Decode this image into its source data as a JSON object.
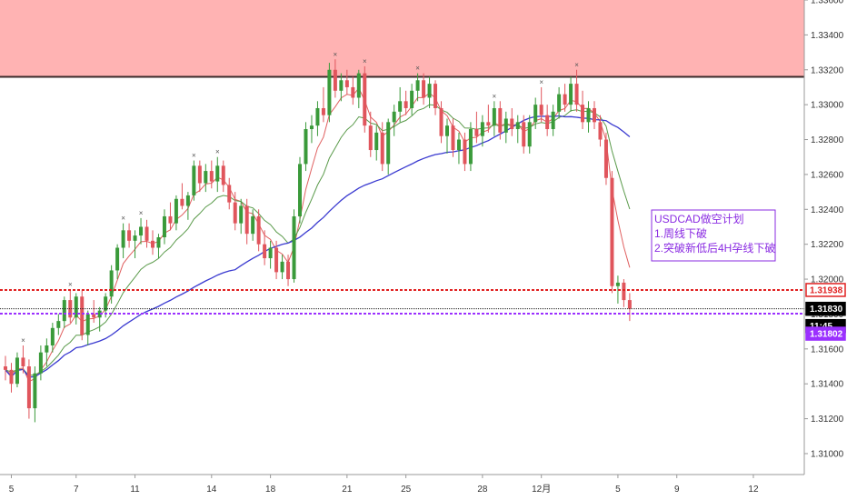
{
  "chart_data": {
    "type": "candlestick",
    "symbol": "USDCAD",
    "timeframe": "4H",
    "colors": {
      "up": "#3a9a3a",
      "down": "#e0555c",
      "ema_fast": "#e06060",
      "ema_slow": "#5a9a4a",
      "ma_long": "#3a3ad0",
      "resistance_zone": "#ffb3b3",
      "resistance_line": "#3a2a2a",
      "level_red": "#e02020",
      "level_current": "#222222",
      "level_purple": "#9b30ff",
      "fractal": "#555555"
    },
    "ylim": [
      1.3088,
      1.336
    ],
    "y_ticks": [
      "1.33600",
      "1.33400",
      "1.33200",
      "1.33000",
      "1.32800",
      "1.32600",
      "1.32400",
      "1.32200",
      "1.32000",
      "1.31800",
      "1.31600",
      "1.31400",
      "1.31200",
      "1.31000"
    ],
    "y_tick_values": [
      1.336,
      1.334,
      1.332,
      1.33,
      1.328,
      1.326,
      1.324,
      1.322,
      1.32,
      1.318,
      1.316,
      1.314,
      1.312,
      1.31
    ],
    "x_ticks": [
      {
        "label": "5",
        "bar": 1
      },
      {
        "label": "7",
        "bar": 12
      },
      {
        "label": "11",
        "bar": 22
      },
      {
        "label": "14",
        "bar": 35
      },
      {
        "label": "18",
        "bar": 45
      },
      {
        "label": "21",
        "bar": 58
      },
      {
        "label": "25",
        "bar": 68
      },
      {
        "label": "28",
        "bar": 81
      },
      {
        "label": "12月",
        "bar": 91
      },
      {
        "label": "5",
        "bar": 104
      },
      {
        "label": "9",
        "bar": 114
      },
      {
        "label": "12",
        "bar": 127
      }
    ],
    "bar_count": 132,
    "resistance_zone": [
      1.3316,
      1.336
    ],
    "levels": {
      "red": {
        "value": 1.31938,
        "label": "1.31938"
      },
      "current": {
        "value": 1.3183,
        "label": "1.31830",
        "countdown": "11:45"
      },
      "purple": {
        "value": 1.31802,
        "label": "1.31802"
      }
    },
    "annotation": {
      "lines": [
        "USDCAD做空计划",
        "1.周线下破",
        "2.突破新低后4H孕线下破"
      ]
    },
    "candles": [
      [
        1.315,
        1.3156,
        1.3142,
        1.3148
      ],
      [
        1.3148,
        1.3152,
        1.3135,
        1.314
      ],
      [
        1.314,
        1.3158,
        1.3138,
        1.3155
      ],
      [
        1.3155,
        1.3162,
        1.3146,
        1.315
      ],
      [
        1.315,
        1.3154,
        1.312,
        1.3126
      ],
      [
        1.3126,
        1.315,
        1.3118,
        1.3146
      ],
      [
        1.3146,
        1.3162,
        1.3142,
        1.3158
      ],
      [
        1.3158,
        1.3166,
        1.315,
        1.3162
      ],
      [
        1.3162,
        1.3175,
        1.3158,
        1.3172
      ],
      [
        1.3172,
        1.318,
        1.3168,
        1.3176
      ],
      [
        1.3176,
        1.319,
        1.3172,
        1.3188
      ],
      [
        1.3188,
        1.3194,
        1.3175,
        1.3178
      ],
      [
        1.3178,
        1.3192,
        1.3174,
        1.319
      ],
      [
        1.319,
        1.3194,
        1.3165,
        1.3168
      ],
      [
        1.3168,
        1.3182,
        1.3162,
        1.318
      ],
      [
        1.318,
        1.3188,
        1.3175,
        1.3178
      ],
      [
        1.3178,
        1.3184,
        1.317,
        1.3182
      ],
      [
        1.3182,
        1.3192,
        1.3178,
        1.319
      ],
      [
        1.319,
        1.3208,
        1.3186,
        1.3205
      ],
      [
        1.3205,
        1.322,
        1.32,
        1.3218
      ],
      [
        1.3218,
        1.3232,
        1.3212,
        1.3228
      ],
      [
        1.3228,
        1.3232,
        1.3218,
        1.3222
      ],
      [
        1.3222,
        1.3228,
        1.3212,
        1.3225
      ],
      [
        1.3225,
        1.3235,
        1.322,
        1.323
      ],
      [
        1.323,
        1.3234,
        1.3218,
        1.3222
      ],
      [
        1.3222,
        1.3228,
        1.3214,
        1.3218
      ],
      [
        1.3218,
        1.3226,
        1.3212,
        1.3224
      ],
      [
        1.3224,
        1.324,
        1.322,
        1.3236
      ],
      [
        1.3236,
        1.3244,
        1.3228,
        1.3232
      ],
      [
        1.3232,
        1.3248,
        1.3228,
        1.3246
      ],
      [
        1.3246,
        1.3255,
        1.324,
        1.3242
      ],
      [
        1.3242,
        1.325,
        1.3234,
        1.3248
      ],
      [
        1.3248,
        1.3268,
        1.3245,
        1.3265
      ],
      [
        1.3265,
        1.3268,
        1.325,
        1.3255
      ],
      [
        1.3255,
        1.3266,
        1.325,
        1.3262
      ],
      [
        1.3262,
        1.3268,
        1.3252,
        1.3256
      ],
      [
        1.3256,
        1.327,
        1.325,
        1.3265
      ],
      [
        1.3265,
        1.3268,
        1.325,
        1.3254
      ],
      [
        1.3254,
        1.3258,
        1.324,
        1.3244
      ],
      [
        1.3244,
        1.325,
        1.3228,
        1.3232
      ],
      [
        1.3232,
        1.3246,
        1.3226,
        1.3242
      ],
      [
        1.3242,
        1.3246,
        1.322,
        1.3226
      ],
      [
        1.3226,
        1.324,
        1.3222,
        1.3236
      ],
      [
        1.3236,
        1.324,
        1.3216,
        1.322
      ],
      [
        1.322,
        1.3228,
        1.3208,
        1.3212
      ],
      [
        1.3212,
        1.3222,
        1.3206,
        1.3218
      ],
      [
        1.3218,
        1.3222,
        1.32,
        1.3204
      ],
      [
        1.3204,
        1.3214,
        1.32,
        1.321
      ],
      [
        1.321,
        1.3214,
        1.3196,
        1.32
      ],
      [
        1.32,
        1.324,
        1.3198,
        1.3236
      ],
      [
        1.3236,
        1.327,
        1.3232,
        1.3266
      ],
      [
        1.3266,
        1.329,
        1.3262,
        1.3286
      ],
      [
        1.3286,
        1.3294,
        1.3278,
        1.3288
      ],
      [
        1.3288,
        1.3302,
        1.3282,
        1.3298
      ],
      [
        1.3298,
        1.331,
        1.329,
        1.3294
      ],
      [
        1.3294,
        1.3324,
        1.329,
        1.332
      ],
      [
        1.332,
        1.3326,
        1.3304,
        1.3308
      ],
      [
        1.3308,
        1.3318,
        1.3302,
        1.3314
      ],
      [
        1.3314,
        1.332,
        1.3306,
        1.331
      ],
      [
        1.331,
        1.3316,
        1.33,
        1.3304
      ],
      [
        1.3304,
        1.332,
        1.3298,
        1.3318
      ],
      [
        1.3318,
        1.3322,
        1.3284,
        1.3288
      ],
      [
        1.3288,
        1.3296,
        1.327,
        1.3274
      ],
      [
        1.3274,
        1.3288,
        1.3268,
        1.3284
      ],
      [
        1.3284,
        1.329,
        1.3262,
        1.3266
      ],
      [
        1.3266,
        1.3292,
        1.326,
        1.329
      ],
      [
        1.329,
        1.33,
        1.3282,
        1.3296
      ],
      [
        1.3296,
        1.331,
        1.329,
        1.3302
      ],
      [
        1.3302,
        1.3308,
        1.3294,
        1.3298
      ],
      [
        1.3298,
        1.3312,
        1.3294,
        1.3308
      ],
      [
        1.3308,
        1.3318,
        1.3302,
        1.3314
      ],
      [
        1.3314,
        1.3318,
        1.33,
        1.3304
      ],
      [
        1.3304,
        1.3316,
        1.3298,
        1.3312
      ],
      [
        1.3312,
        1.3314,
        1.3294,
        1.3298
      ],
      [
        1.3298,
        1.3302,
        1.3278,
        1.3282
      ],
      [
        1.3282,
        1.3292,
        1.3272,
        1.3288
      ],
      [
        1.3288,
        1.3292,
        1.327,
        1.3274
      ],
      [
        1.3274,
        1.3284,
        1.3266,
        1.328
      ],
      [
        1.328,
        1.3284,
        1.3262,
        1.3266
      ],
      [
        1.3266,
        1.329,
        1.3262,
        1.3286
      ],
      [
        1.3286,
        1.3296,
        1.3278,
        1.3282
      ],
      [
        1.3282,
        1.3294,
        1.3276,
        1.329
      ],
      [
        1.329,
        1.33,
        1.3284,
        1.3288
      ],
      [
        1.3288,
        1.3302,
        1.3282,
        1.3298
      ],
      [
        1.3298,
        1.3302,
        1.328,
        1.3284
      ],
      [
        1.3284,
        1.3296,
        1.3278,
        1.3292
      ],
      [
        1.3292,
        1.3298,
        1.3282,
        1.3286
      ],
      [
        1.3286,
        1.3294,
        1.3278,
        1.329
      ],
      [
        1.329,
        1.3294,
        1.3272,
        1.3276
      ],
      [
        1.3276,
        1.3294,
        1.3272,
        1.329
      ],
      [
        1.329,
        1.3304,
        1.3286,
        1.33
      ],
      [
        1.33,
        1.331,
        1.329,
        1.3294
      ],
      [
        1.3294,
        1.33,
        1.3282,
        1.3286
      ],
      [
        1.3286,
        1.33,
        1.3282,
        1.3296
      ],
      [
        1.3296,
        1.331,
        1.3292,
        1.3306
      ],
      [
        1.3306,
        1.3312,
        1.3296,
        1.33
      ],
      [
        1.33,
        1.3316,
        1.3296,
        1.3312
      ],
      [
        1.3312,
        1.332,
        1.3296,
        1.33
      ],
      [
        1.33,
        1.3308,
        1.3286,
        1.329
      ],
      [
        1.329,
        1.3302,
        1.3284,
        1.3298
      ],
      [
        1.3298,
        1.3302,
        1.3286,
        1.329
      ],
      [
        1.329,
        1.3294,
        1.3276,
        1.328
      ],
      [
        1.328,
        1.3284,
        1.3254,
        1.3258
      ],
      [
        1.3258,
        1.3262,
        1.3192,
        1.3196
      ],
      [
        1.3196,
        1.3202,
        1.3186,
        1.3198
      ],
      [
        1.3198,
        1.32,
        1.3184,
        1.3188
      ],
      [
        1.3188,
        1.3192,
        1.3176,
        1.3183
      ]
    ]
  }
}
